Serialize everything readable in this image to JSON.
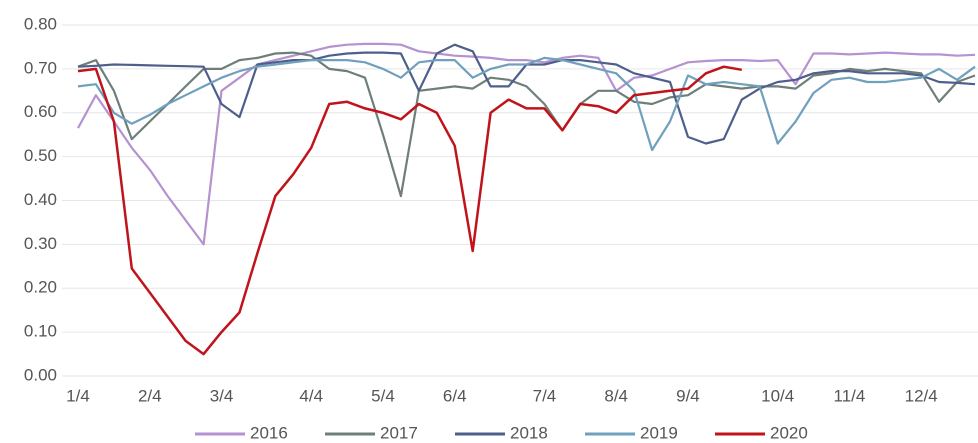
{
  "chart_data": {
    "type": "line",
    "categories": [
      "1/4",
      null,
      null,
      null,
      "2/4",
      null,
      null,
      null,
      "3/4",
      null,
      null,
      null,
      null,
      "4/4",
      null,
      null,
      null,
      "5/4",
      null,
      null,
      null,
      "6/4",
      null,
      null,
      null,
      null,
      "7/4",
      null,
      null,
      null,
      "8/4",
      null,
      null,
      null,
      "9/4",
      null,
      null,
      null,
      null,
      "10/4",
      null,
      null,
      null,
      "11/4",
      null,
      null,
      null,
      "12/4",
      null,
      null,
      null
    ],
    "series": [
      {
        "name": "2016",
        "color": "#b592d0",
        "values": [
          0.565,
          0.64,
          0.58,
          0.52,
          0.47,
          0.41,
          0.355,
          0.3,
          0.65,
          0.68,
          0.71,
          0.72,
          0.73,
          0.74,
          0.75,
          0.755,
          0.757,
          0.757,
          0.755,
          0.74,
          0.735,
          0.73,
          0.728,
          0.725,
          0.72,
          0.72,
          0.715,
          0.725,
          0.73,
          0.725,
          0.65,
          0.68,
          0.685,
          0.7,
          0.715,
          0.718,
          0.72,
          0.72,
          0.718,
          0.72,
          0.665,
          0.735,
          0.735,
          0.733,
          0.735,
          0.737,
          0.735,
          0.733,
          0.733,
          0.73,
          0.732
        ]
      },
      {
        "name": "2017",
        "color": "#6e7f7a",
        "values": [
          0.705,
          0.72,
          0.65,
          0.54,
          0.58,
          0.62,
          0.66,
          0.7,
          0.7,
          0.72,
          0.725,
          0.735,
          0.737,
          0.73,
          0.7,
          0.695,
          0.68,
          0.55,
          0.41,
          0.65,
          0.655,
          0.66,
          0.655,
          0.68,
          0.675,
          0.66,
          0.62,
          0.56,
          0.62,
          0.65,
          0.65,
          0.625,
          0.62,
          0.635,
          0.64,
          0.665,
          0.66,
          0.655,
          0.66,
          0.66,
          0.655,
          0.685,
          0.69,
          0.7,
          0.695,
          0.7,
          0.695,
          0.69,
          0.625,
          0.67,
          0.685
        ]
      },
      {
        "name": "2018",
        "color": "#4f5f8c",
        "values": [
          0.705,
          0.707,
          0.71,
          0.709,
          0.708,
          0.707,
          0.706,
          0.705,
          0.62,
          0.59,
          0.71,
          0.715,
          0.72,
          0.72,
          0.73,
          0.735,
          0.737,
          0.737,
          0.735,
          0.65,
          0.735,
          0.755,
          0.74,
          0.66,
          0.66,
          0.71,
          0.71,
          0.72,
          0.72,
          0.715,
          0.71,
          0.69,
          0.68,
          0.67,
          0.545,
          0.53,
          0.54,
          0.63,
          0.655,
          0.67,
          0.675,
          0.69,
          0.695,
          0.695,
          0.69,
          0.69,
          0.69,
          0.685,
          0.67,
          0.668,
          0.665
        ]
      },
      {
        "name": "2019",
        "color": "#6fa0bd",
        "values": [
          0.66,
          0.665,
          0.6,
          0.575,
          0.595,
          0.62,
          0.64,
          0.66,
          0.68,
          0.695,
          0.705,
          0.71,
          0.715,
          0.72,
          0.72,
          0.72,
          0.715,
          0.7,
          0.68,
          0.715,
          0.72,
          0.72,
          0.68,
          0.7,
          0.71,
          0.71,
          0.725,
          0.72,
          0.71,
          0.7,
          0.69,
          0.65,
          0.515,
          0.58,
          0.685,
          0.665,
          0.67,
          0.665,
          0.66,
          0.53,
          0.58,
          0.645,
          0.675,
          0.68,
          0.67,
          0.67,
          0.675,
          0.68,
          0.7,
          0.675,
          0.705
        ]
      },
      {
        "name": "2020",
        "color": "#c0141c",
        "values": [
          0.695,
          0.7,
          0.58,
          0.245,
          0.19,
          0.135,
          0.08,
          0.05,
          0.1,
          0.145,
          0.28,
          0.41,
          0.46,
          0.52,
          0.62,
          0.625,
          0.61,
          0.6,
          0.585,
          0.62,
          0.6,
          0.525,
          0.285,
          0.6,
          0.63,
          0.61,
          0.61,
          0.56,
          0.62,
          0.615,
          0.6,
          0.64,
          0.645,
          0.65,
          0.655,
          0.69,
          0.705,
          0.698,
          null,
          null,
          null,
          null,
          null,
          null,
          null,
          null,
          null,
          null,
          null,
          null,
          null
        ]
      }
    ],
    "ylim": [
      0,
      0.8
    ],
    "yticks": [
      {
        "value": 0,
        "label": "0.00"
      },
      {
        "value": 0.1,
        "label": "0.10"
      },
      {
        "value": 0.2,
        "label": "0.20"
      },
      {
        "value": 0.3,
        "label": "0.30"
      },
      {
        "value": 0.4,
        "label": "0.40"
      },
      {
        "value": 0.5,
        "label": "0.50"
      },
      {
        "value": 0.6,
        "label": "0.60"
      },
      {
        "value": 0.7,
        "label": "0.70"
      },
      {
        "value": 0.8,
        "label": "0.80"
      }
    ],
    "grid": true,
    "legend": "bottom"
  }
}
